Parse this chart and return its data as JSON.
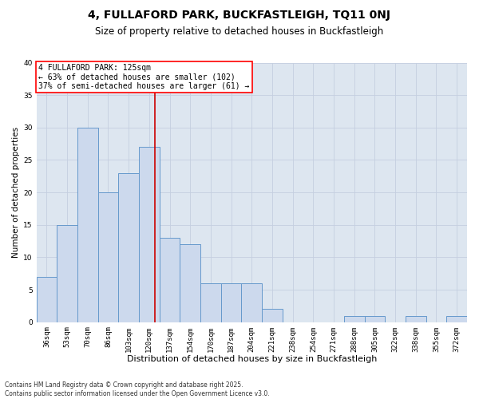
{
  "title1": "4, FULLAFORD PARK, BUCKFASTLEIGH, TQ11 0NJ",
  "title2": "Size of property relative to detached houses in Buckfastleigh",
  "xlabel": "Distribution of detached houses by size in Buckfastleigh",
  "ylabel": "Number of detached properties",
  "categories": [
    "36sqm",
    "53sqm",
    "70sqm",
    "86sqm",
    "103sqm",
    "120sqm",
    "137sqm",
    "154sqm",
    "170sqm",
    "187sqm",
    "204sqm",
    "221sqm",
    "238sqm",
    "254sqm",
    "271sqm",
    "288sqm",
    "305sqm",
    "322sqm",
    "338sqm",
    "355sqm",
    "372sqm"
  ],
  "values": [
    7,
    15,
    30,
    20,
    23,
    27,
    13,
    12,
    6,
    6,
    6,
    2,
    0,
    0,
    0,
    1,
    1,
    0,
    1,
    0,
    1
  ],
  "bar_color": "#ccd9ed",
  "bar_edge_color": "#6699cc",
  "red_line_color": "#cc0000",
  "red_line_x": 5.29,
  "annotation_text": "4 FULLAFORD PARK: 125sqm\n← 63% of detached houses are smaller (102)\n37% of semi-detached houses are larger (61) →",
  "annotation_box_color": "white",
  "annotation_box_edge_color": "red",
  "ylim": [
    0,
    40
  ],
  "yticks": [
    0,
    5,
    10,
    15,
    20,
    25,
    30,
    35,
    40
  ],
  "grid_color": "#c5cfe0",
  "background_color": "#dde6f0",
  "footer": "Contains HM Land Registry data © Crown copyright and database right 2025.\nContains public sector information licensed under the Open Government Licence v3.0.",
  "title1_fontsize": 10,
  "title2_fontsize": 8.5,
  "xlabel_fontsize": 8,
  "ylabel_fontsize": 7.5,
  "tick_fontsize": 6.5,
  "annotation_fontsize": 7,
  "footer_fontsize": 5.5
}
